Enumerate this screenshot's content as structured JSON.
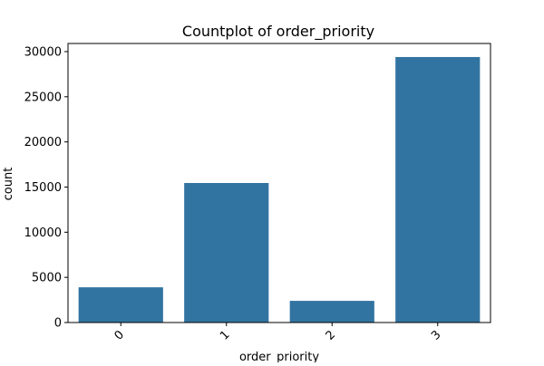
{
  "chart_data": {
    "type": "bar",
    "title": "Countplot of order_priority",
    "xlabel": "order_priority",
    "ylabel": "count",
    "categories": [
      "0",
      "1",
      "2",
      "3"
    ],
    "values": [
      3900,
      15450,
      2400,
      29400
    ],
    "ylim": [
      0,
      30900
    ],
    "yticks": [
      0,
      5000,
      10000,
      15000,
      20000,
      25000,
      30000
    ],
    "ytick_labels": [
      "0",
      "5000",
      "10000",
      "15000",
      "20000",
      "25000",
      "30000"
    ],
    "xtick_rotation": 45,
    "bar_color": "#3274a1",
    "grid": false
  }
}
